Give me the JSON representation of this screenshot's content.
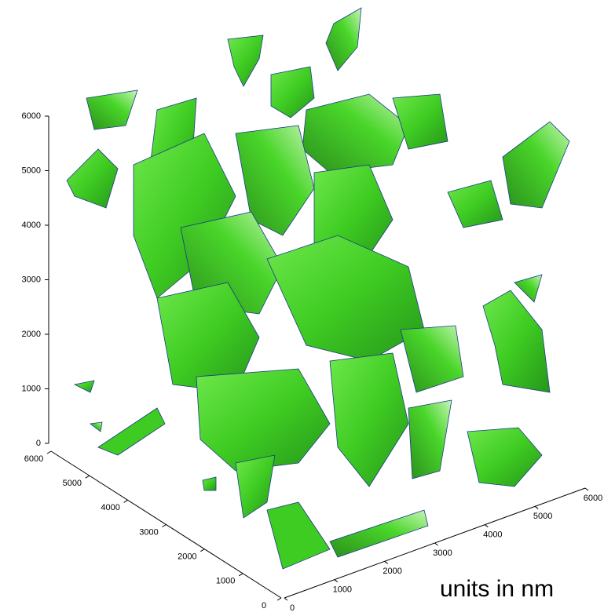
{
  "chart_data": {
    "type": "isosurface",
    "annotation": "units in nm",
    "xlim": [
      0,
      6000
    ],
    "xticks": [
      0,
      1000,
      2000,
      3000,
      4000,
      5000,
      6000
    ],
    "ylim": [
      0,
      6000
    ],
    "yticks": [
      0,
      1000,
      2000,
      3000,
      4000,
      5000,
      6000
    ],
    "zlim": [
      0,
      6000
    ],
    "zticks": [
      0,
      1000,
      2000,
      3000,
      4000,
      5000,
      6000
    ],
    "color": "#3fcc22"
  }
}
